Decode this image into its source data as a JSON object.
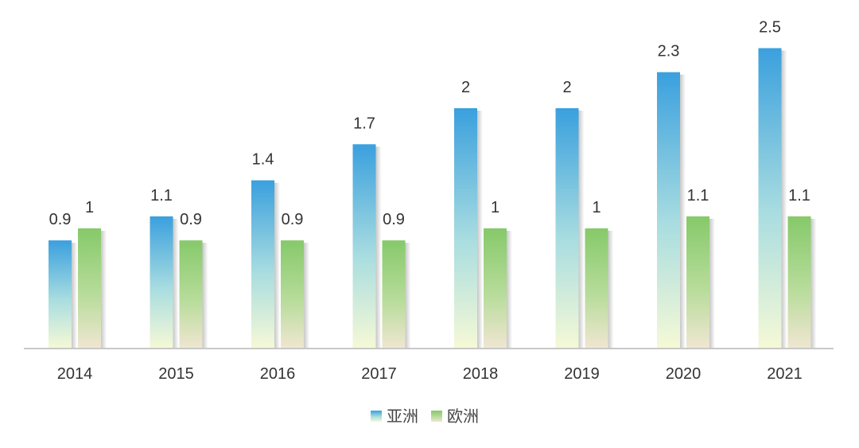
{
  "chart_data": {
    "type": "bar",
    "title": "",
    "xlabel": "",
    "ylabel": "",
    "categories": [
      "2014",
      "2015",
      "2016",
      "2017",
      "2018",
      "2019",
      "2020",
      "2021"
    ],
    "series": [
      {
        "name": "亚洲",
        "values": [
          0.9,
          1.1,
          1.4,
          1.7,
          2,
          2,
          2.3,
          2.5
        ],
        "color": "#3fa3dc"
      },
      {
        "name": "欧洲",
        "values": [
          1,
          0.9,
          0.9,
          0.9,
          1,
          1,
          1.1,
          1.1
        ],
        "color": "#8ccb6e"
      }
    ],
    "ylim": [
      0,
      2.5
    ],
    "grid": false,
    "legend": "bottom"
  }
}
